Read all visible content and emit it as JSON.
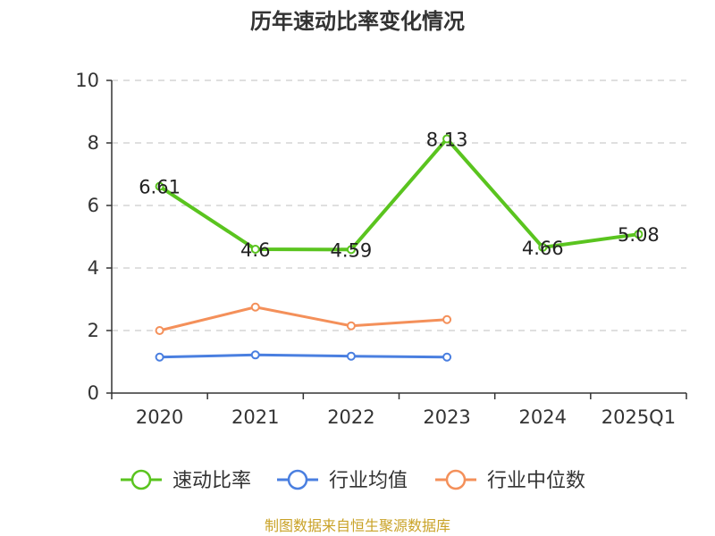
{
  "chart_data": {
    "type": "line",
    "title": "历年速动比率变化情况",
    "categories": [
      "2020",
      "2021",
      "2022",
      "2023",
      "2024",
      "2025Q1"
    ],
    "ylim": [
      0,
      10
    ],
    "yticks": [
      0,
      2,
      4,
      6,
      8,
      10
    ],
    "grid": true,
    "legend_position": "bottom",
    "series": [
      {
        "name": "速动比率",
        "color": "#5ac41f",
        "values": [
          6.61,
          4.6,
          4.59,
          8.13,
          4.66,
          5.08
        ],
        "labels": [
          "6.61",
          "4.6",
          "4.59",
          "8.13",
          "4.66",
          "5.08"
        ]
      },
      {
        "name": "行业均值",
        "color": "#4a7fe0",
        "values": [
          1.15,
          1.22,
          1.18,
          1.15,
          null,
          null
        ]
      },
      {
        "name": "行业中位数",
        "color": "#f4905a",
        "values": [
          2.0,
          2.75,
          2.15,
          2.35,
          null,
          null
        ]
      }
    ]
  },
  "source": "制图数据来自恒生聚源数据库"
}
